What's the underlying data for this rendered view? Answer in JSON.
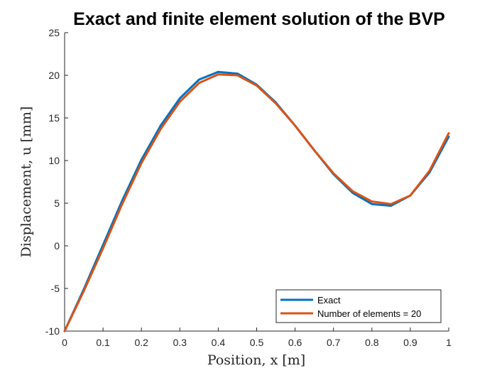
{
  "chart_data": {
    "type": "line",
    "title": "Exact and finite element solution of the BVP",
    "xlabel": "Position, x [m]",
    "ylabel": "Displacement, u [mm]",
    "xlim": [
      0,
      1
    ],
    "ylim": [
      -10,
      25
    ],
    "xticks": [
      "0",
      "0.1",
      "0.2",
      "0.3",
      "0.4",
      "0.5",
      "0.6",
      "0.7",
      "0.8",
      "0.9",
      "1"
    ],
    "yticks": [
      "-10",
      "-5",
      "0",
      "5",
      "10",
      "15",
      "20",
      "25"
    ],
    "grid": false,
    "legend_position": "bottom-right",
    "x": [
      0,
      0.05,
      0.1,
      0.15,
      0.2,
      0.25,
      0.3,
      0.35,
      0.4,
      0.45,
      0.5,
      0.55,
      0.6,
      0.65,
      0.7,
      0.75,
      0.8,
      0.85,
      0.9,
      0.95,
      1.0
    ],
    "series": [
      {
        "name": "Exact",
        "color": "#0072BD",
        "values": [
          -10,
          -5.1,
          0.1,
          5.3,
          10.1,
          14.1,
          17.3,
          19.5,
          20.4,
          20.2,
          18.9,
          16.8,
          14.1,
          11.2,
          8.4,
          6.2,
          4.9,
          4.7,
          5.9,
          8.6,
          12.8
        ]
      },
      {
        "name": "Number of elements = 20",
        "color": "#D95319",
        "values": [
          -10,
          -5.3,
          -0.3,
          4.9,
          9.7,
          13.7,
          16.9,
          19.1,
          20.1,
          20.0,
          18.8,
          16.7,
          14.1,
          11.2,
          8.5,
          6.4,
          5.2,
          4.9,
          5.9,
          8.8,
          13.2
        ]
      }
    ]
  }
}
